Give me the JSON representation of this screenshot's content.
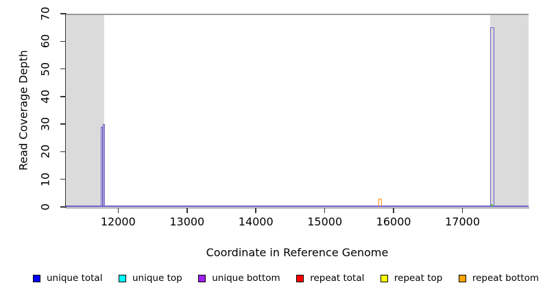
{
  "chart_data": {
    "type": "line",
    "title": "",
    "xlabel": "Coordinate in Reference Genome",
    "ylabel": "Read Coverage Depth",
    "xlim": [
      11240,
      17960
    ],
    "ylim": [
      0,
      70
    ],
    "x_ticks": [
      12000,
      13000,
      14000,
      15000,
      16000,
      17000
    ],
    "y_ticks": [
      0,
      10,
      20,
      30,
      40,
      50,
      60,
      70
    ],
    "grid": false,
    "legend_position": "bottom",
    "max_depth_line_y": 70,
    "colors": {
      "background": "#FFFFFF",
      "masked_region": "#DBDBDB",
      "max_depth_line": "#999999",
      "axis": "#333333",
      "unique_coverage_line": "#6A5ACD",
      "repeat_bottom_line": "#FF8C00",
      "base_mark": "#66BB44",
      "text": "#000000"
    },
    "masked_regions": [
      {
        "x_start": 11240,
        "x_end": 11800
      },
      {
        "x_start": 17400,
        "x_end": 17960
      }
    ],
    "spikes": [
      {
        "name": "unique-coverage-spike-left",
        "color": "#6A5ACD",
        "segments": [
          {
            "x_start": 11750,
            "x_end": 11777,
            "depth": 29
          },
          {
            "x_start": 11777,
            "x_end": 11809,
            "depth": 30
          }
        ]
      },
      {
        "name": "unique-coverage-spike-right",
        "color": "#6A5ACD",
        "segments": [
          {
            "x_start": 17400,
            "x_end": 17462,
            "depth": 65
          }
        ]
      },
      {
        "name": "repeat-bottom-spike",
        "color": "#FF8C00",
        "segments": [
          {
            "x_start": 15775,
            "x_end": 15830,
            "depth": 3
          }
        ]
      }
    ],
    "base_marks": [
      {
        "x_start": 11772,
        "x_end": 11792,
        "color": "#66BB44"
      },
      {
        "x_start": 17412,
        "x_end": 17442,
        "color": "#66BB44"
      }
    ],
    "legend": [
      {
        "label": "unique total",
        "color": "#0000FF"
      },
      {
        "label": "unique top",
        "color": "#00FFFF"
      },
      {
        "label": "unique bottom",
        "color": "#A020F0"
      },
      {
        "label": "repeat total",
        "color": "#FF0000"
      },
      {
        "label": "repeat top",
        "color": "#FFFF00"
      },
      {
        "label": "repeat bottom",
        "color": "#FFA500"
      }
    ]
  }
}
